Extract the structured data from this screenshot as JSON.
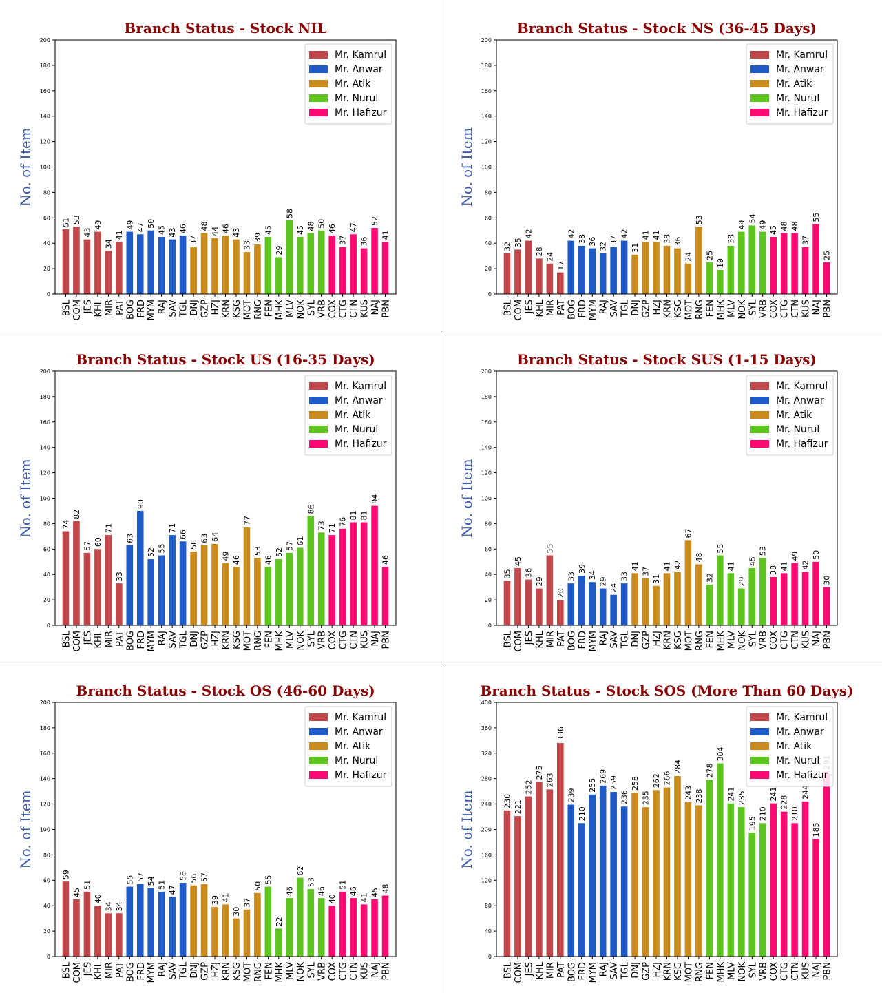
{
  "series_colors": [
    "#c0474a",
    "#1f5bc6",
    "#c98a1e",
    "#5ec41f",
    "#ff0a72"
  ],
  "chart_data": [
    {
      "type": "bar",
      "title": "Branch Status - Stock NIL",
      "ylabel": "No. of Item",
      "ylim": [
        0,
        200
      ],
      "yticks": [
        0,
        20,
        40,
        60,
        80,
        100,
        120,
        140,
        160,
        180,
        200
      ],
      "legend_position": "top-right",
      "series": [
        {
          "name": "Mr. Kamrul",
          "categories": [
            "BSL",
            "COM",
            "JES",
            "KHL",
            "MIR",
            "PAT"
          ],
          "values": [
            51,
            53,
            43,
            49,
            34,
            41
          ]
        },
        {
          "name": "Mr. Anwar",
          "categories": [
            "BOG",
            "FRD",
            "MYM",
            "RAJ",
            "SAV",
            "TGL"
          ],
          "values": [
            49,
            47,
            50,
            45,
            43,
            46
          ]
        },
        {
          "name": "Mr. Atik",
          "categories": [
            "DNJ",
            "GZP",
            "HZJ",
            "KRN",
            "KSG",
            "MOT",
            "RNG"
          ],
          "values": [
            37,
            48,
            44,
            46,
            43,
            33,
            39
          ]
        },
        {
          "name": "Mr. Nurul",
          "categories": [
            "FEN",
            "MHK",
            "MLV",
            "NOK",
            "SYL",
            "VRB"
          ],
          "values": [
            45,
            29,
            58,
            45,
            48,
            50
          ]
        },
        {
          "name": "Mr. Hafizur",
          "categories": [
            "COX",
            "CTG",
            "CTN",
            "KUS",
            "NAJ",
            "PBN"
          ],
          "values": [
            46,
            37,
            47,
            36,
            52,
            41
          ]
        }
      ]
    },
    {
      "type": "bar",
      "title": "Branch Status - Stock NS (36-45 Days)",
      "ylabel": "No. of Item",
      "ylim": [
        0,
        200
      ],
      "yticks": [
        0,
        20,
        40,
        60,
        80,
        100,
        120,
        140,
        160,
        180,
        200
      ],
      "legend_position": "top-right",
      "series": [
        {
          "name": "Mr. Kamrul",
          "categories": [
            "BSL",
            "COM",
            "JES",
            "KHL",
            "MIR",
            "PAT"
          ],
          "values": [
            32,
            35,
            42,
            28,
            24,
            17
          ]
        },
        {
          "name": "Mr. Anwar",
          "categories": [
            "BOG",
            "FRD",
            "MYM",
            "RAJ",
            "SAV",
            "TGL"
          ],
          "values": [
            42,
            38,
            36,
            32,
            37,
            42
          ]
        },
        {
          "name": "Mr. Atik",
          "categories": [
            "DNJ",
            "GZP",
            "HZJ",
            "KRN",
            "KSG",
            "MOT",
            "RNG"
          ],
          "values": [
            31,
            41,
            41,
            38,
            36,
            24,
            53
          ]
        },
        {
          "name": "Mr. Nurul",
          "categories": [
            "FEN",
            "MHK",
            "MLV",
            "NOK",
            "SYL",
            "VRB"
          ],
          "values": [
            25,
            19,
            38,
            49,
            54,
            49
          ]
        },
        {
          "name": "Mr. Hafizur",
          "categories": [
            "COX",
            "CTG",
            "CTN",
            "KUS",
            "NAJ",
            "PBN"
          ],
          "values": [
            45,
            48,
            48,
            37,
            55,
            25
          ]
        }
      ]
    },
    {
      "type": "bar",
      "title": "Branch Status - Stock US (16-35 Days)",
      "ylabel": "No. of Item",
      "ylim": [
        0,
        200
      ],
      "yticks": [
        0,
        20,
        40,
        60,
        80,
        100,
        120,
        140,
        160,
        180,
        200
      ],
      "legend_position": "top-right",
      "series": [
        {
          "name": "Mr. Kamrul",
          "categories": [
            "BSL",
            "COM",
            "JES",
            "KHL",
            "MIR",
            "PAT"
          ],
          "values": [
            74,
            82,
            57,
            60,
            71,
            33
          ]
        },
        {
          "name": "Mr. Anwar",
          "categories": [
            "BOG",
            "FRD",
            "MYM",
            "RAJ",
            "SAV",
            "TGL"
          ],
          "values": [
            63,
            90,
            52,
            55,
            71,
            66
          ]
        },
        {
          "name": "Mr. Atik",
          "categories": [
            "DNJ",
            "GZP",
            "HZJ",
            "KRN",
            "KSG",
            "MOT",
            "RNG"
          ],
          "values": [
            58,
            63,
            64,
            49,
            46,
            77,
            53
          ]
        },
        {
          "name": "Mr. Nurul",
          "categories": [
            "FEN",
            "MHK",
            "MLV",
            "NOK",
            "SYL",
            "VRB"
          ],
          "values": [
            46,
            52,
            57,
            61,
            86,
            73
          ]
        },
        {
          "name": "Mr. Hafizur",
          "categories": [
            "COX",
            "CTG",
            "CTN",
            "KUS",
            "NAJ",
            "PBN"
          ],
          "values": [
            71,
            76,
            81,
            81,
            94,
            46
          ]
        }
      ]
    },
    {
      "type": "bar",
      "title": "Branch Status - Stock SUS (1-15 Days)",
      "ylabel": "No. of Item",
      "ylim": [
        0,
        200
      ],
      "yticks": [
        0,
        20,
        40,
        60,
        80,
        100,
        120,
        140,
        160,
        180,
        200
      ],
      "legend_position": "top-right",
      "series": [
        {
          "name": "Mr. Kamrul",
          "categories": [
            "BSL",
            "COM",
            "JES",
            "KHL",
            "MIR",
            "PAT"
          ],
          "values": [
            35,
            45,
            36,
            29,
            55,
            20
          ]
        },
        {
          "name": "Mr. Anwar",
          "categories": [
            "BOG",
            "FRD",
            "MYM",
            "RAJ",
            "SAV",
            "TGL"
          ],
          "values": [
            33,
            39,
            34,
            29,
            24,
            33
          ]
        },
        {
          "name": "Mr. Atik",
          "categories": [
            "DNJ",
            "GZP",
            "HZJ",
            "KRN",
            "KSG",
            "MOT",
            "RNG"
          ],
          "values": [
            41,
            37,
            31,
            41,
            42,
            67,
            48
          ]
        },
        {
          "name": "Mr. Nurul",
          "categories": [
            "FEN",
            "MHK",
            "MLV",
            "NOK",
            "SYL",
            "VRB"
          ],
          "values": [
            32,
            55,
            41,
            29,
            45,
            53
          ]
        },
        {
          "name": "Mr. Hafizur",
          "categories": [
            "COX",
            "CTG",
            "CTN",
            "KUS",
            "NAJ",
            "PBN"
          ],
          "values": [
            38,
            41,
            49,
            42,
            50,
            30
          ]
        }
      ]
    },
    {
      "type": "bar",
      "title": "Branch Status - Stock OS (46-60 Days)",
      "ylabel": "No. of Item",
      "ylim": [
        0,
        200
      ],
      "yticks": [
        0,
        20,
        40,
        60,
        80,
        100,
        120,
        140,
        160,
        180,
        200
      ],
      "legend_position": "top-right",
      "series": [
        {
          "name": "Mr. Kamrul",
          "categories": [
            "BSL",
            "COM",
            "JES",
            "KHL",
            "MIR",
            "PAT"
          ],
          "values": [
            59,
            45,
            51,
            40,
            34,
            34
          ]
        },
        {
          "name": "Mr. Anwar",
          "categories": [
            "BOG",
            "FRD",
            "MYM",
            "RAJ",
            "SAV",
            "TGL"
          ],
          "values": [
            55,
            57,
            54,
            51,
            47,
            58
          ]
        },
        {
          "name": "Mr. Atik",
          "categories": [
            "DNJ",
            "GZP",
            "HZJ",
            "KRN",
            "KSG",
            "MOT",
            "RNG"
          ],
          "values": [
            56,
            57,
            39,
            41,
            30,
            37,
            50
          ]
        },
        {
          "name": "Mr. Nurul",
          "categories": [
            "FEN",
            "MHK",
            "MLV",
            "NOK",
            "SYL",
            "VRB"
          ],
          "values": [
            55,
            22,
            46,
            62,
            53,
            46
          ]
        },
        {
          "name": "Mr. Hafizur",
          "categories": [
            "COX",
            "CTG",
            "CTN",
            "KUS",
            "NAJ",
            "PBN"
          ],
          "values": [
            40,
            51,
            46,
            41,
            45,
            48
          ]
        }
      ]
    },
    {
      "type": "bar",
      "title": "Branch Status - Stock SOS (More Than 60 Days)",
      "ylabel": "No. of Item",
      "ylim": [
        0,
        400
      ],
      "yticks": [
        0,
        40,
        80,
        120,
        160,
        200,
        240,
        280,
        320,
        360,
        400
      ],
      "legend_position": "top-right",
      "series": [
        {
          "name": "Mr. Kamrul",
          "categories": [
            "BSL",
            "COM",
            "JES",
            "KHL",
            "MIR",
            "PAT"
          ],
          "values": [
            230,
            221,
            252,
            275,
            263,
            336
          ]
        },
        {
          "name": "Mr. Anwar",
          "categories": [
            "BOG",
            "FRD",
            "MYM",
            "RAJ",
            "SAV",
            "TGL"
          ],
          "values": [
            239,
            210,
            255,
            269,
            259,
            236
          ]
        },
        {
          "name": "Mr. Atik",
          "categories": [
            "DNJ",
            "GZP",
            "HZJ",
            "KRN",
            "KSG",
            "MOT",
            "RNG"
          ],
          "values": [
            258,
            235,
            262,
            266,
            284,
            243,
            238
          ]
        },
        {
          "name": "Mr. Nurul",
          "categories": [
            "FEN",
            "MHK",
            "MLV",
            "NOK",
            "SYL",
            "VRB"
          ],
          "values": [
            278,
            304,
            241,
            235,
            195,
            210
          ]
        },
        {
          "name": "Mr. Hafizur",
          "categories": [
            "COX",
            "CTG",
            "CTN",
            "KUS",
            "NAJ",
            "PBN"
          ],
          "values": [
            241,
            228,
            210,
            244,
            185,
            291
          ]
        }
      ]
    }
  ]
}
